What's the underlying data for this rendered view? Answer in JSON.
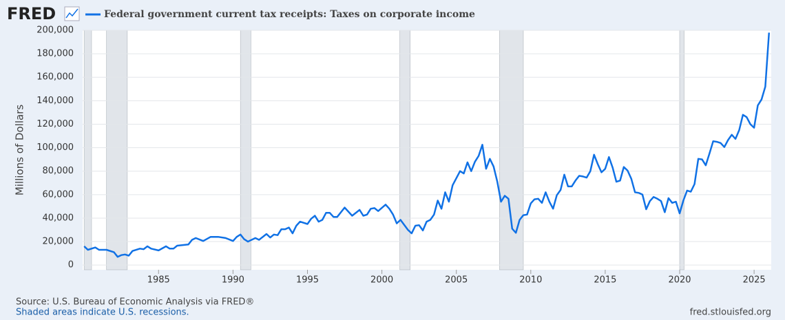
{
  "chart_data": {
    "type": "line",
    "logo": "FRED",
    "title": "Federal government current tax receipts: Taxes on corporate income",
    "y_label": "Millions of Dollars",
    "source": "Source: U.S. Bureau of Economic Analysis via FRED®",
    "note": "Shaded areas indicate U.S. recessions.",
    "site": "fred.stlouisfed.org",
    "color": "#1071e5",
    "grid": true,
    "xlim": [
      1979.9,
      2026.15
    ],
    "xticks": [
      1985,
      1990,
      1995,
      2000,
      2005,
      2010,
      2015,
      2020,
      2025
    ],
    "ylim": [
      -4000,
      200000
    ],
    "yticks": [
      0,
      {
        "value": 20000,
        "label": "20,000"
      },
      {
        "value": 40000,
        "label": "40,000"
      },
      {
        "value": 60000,
        "label": "60,000"
      },
      {
        "value": 80000,
        "label": "80,000"
      },
      {
        "value": 100000,
        "label": "100,000"
      },
      {
        "value": 120000,
        "label": "120,000"
      },
      {
        "value": 140000,
        "label": "140,000"
      },
      {
        "value": 160000,
        "label": "160,000"
      },
      {
        "value": 180000,
        "label": "180,000"
      },
      {
        "value": 200000,
        "label": "200,000"
      }
    ],
    "recessions": [
      [
        1980.0,
        1980.5
      ],
      [
        1981.5,
        1982.9
      ],
      [
        1990.5,
        1991.2
      ],
      [
        2001.2,
        2001.9
      ],
      [
        2007.9,
        2009.5
      ],
      [
        2020.0,
        2020.3
      ]
    ],
    "x": [
      1980.0,
      1980.25,
      1980.75,
      1981.0,
      1981.5,
      1982.0,
      1982.25,
      1982.5,
      1982.75,
      1983.0,
      1983.25,
      1983.75,
      1984.0,
      1984.25,
      1984.5,
      1985.0,
      1985.5,
      1985.75,
      1986.0,
      1986.25,
      1987.0,
      1987.25,
      1987.5,
      1988.0,
      1988.5,
      1989.0,
      1989.5,
      1990.0,
      1990.25,
      1990.5,
      1990.75,
      1991.0,
      1991.5,
      1991.75,
      1992.25,
      1992.5,
      1992.75,
      1993.0,
      1993.25,
      1993.5,
      1993.75,
      1994.0,
      1994.25,
      1994.5,
      1995.0,
      1995.25,
      1995.5,
      1995.75,
      1996.0,
      1996.25,
      1996.5,
      1996.75,
      1997.0,
      1997.5,
      1998.0,
      1998.5,
      1998.75,
      1999.0,
      1999.25,
      1999.5,
      1999.75,
      2000.25,
      2000.5,
      2000.75,
      2001.0,
      2001.25,
      2001.75,
      2002.0,
      2002.25,
      2002.5,
      2002.75,
      2003.0,
      2003.25,
      2003.5,
      2003.75,
      2004.0,
      2004.25,
      2004.5,
      2004.75,
      2005.25,
      2005.5,
      2005.75,
      2006.0,
      2006.25,
      2006.5,
      2006.75,
      2007.0,
      2007.25,
      2007.5,
      2007.75,
      2008.0,
      2008.25,
      2008.5,
      2008.75,
      2009.0,
      2009.25,
      2009.5,
      2009.75,
      2010.0,
      2010.25,
      2010.5,
      2010.75,
      2011.0,
      2011.25,
      2011.5,
      2011.75,
      2012.0,
      2012.25,
      2012.5,
      2012.75,
      2013.0,
      2013.25,
      2013.5,
      2013.75,
      2014.0,
      2014.25,
      2014.5,
      2014.75,
      2015.0,
      2015.25,
      2015.5,
      2015.75,
      2016.0,
      2016.25,
      2016.5,
      2016.75,
      2017.0,
      2017.25,
      2017.5,
      2017.75,
      2018.0,
      2018.25,
      2018.5,
      2018.75,
      2019.0,
      2019.25,
      2019.5,
      2019.75,
      2020.0,
      2020.25,
      2020.5,
      2020.75,
      2021.0,
      2021.25,
      2021.5,
      2021.75,
      2022.0,
      2022.25,
      2022.5,
      2022.75,
      2023.0,
      2023.25,
      2023.5,
      2023.75,
      2024.0,
      2024.25,
      2024.5,
      2024.75,
      2025.0,
      2025.25,
      2025.5,
      2025.75,
      2026.0
    ],
    "values": [
      16000,
      13000,
      15000,
      13000,
      13000,
      11000,
      7000,
      8500,
      9000,
      8000,
      12000,
      14000,
      13500,
      16000,
      14000,
      12500,
      16000,
      14000,
      14000,
      16500,
      17500,
      21500,
      23000,
      20500,
      24000,
      24000,
      23000,
      20500,
      24000,
      26000,
      22000,
      20000,
      23000,
      21500,
      26500,
      23500,
      26000,
      25500,
      30500,
      30500,
      32000,
      27000,
      33500,
      37000,
      35000,
      39500,
      42000,
      37000,
      38500,
      44500,
      44500,
      41000,
      41000,
      49000,
      42000,
      47000,
      42000,
      43000,
      48000,
      48500,
      46000,
      51500,
      48000,
      43000,
      35500,
      38500,
      30000,
      27000,
      33500,
      34000,
      29500,
      37000,
      38500,
      43000,
      55000,
      48000,
      62000,
      54000,
      68000,
      80000,
      78000,
      87500,
      80000,
      88000,
      93000,
      102500,
      82000,
      90500,
      84000,
      71000,
      54000,
      59000,
      56500,
      31000,
      27500,
      38500,
      42500,
      43000,
      52500,
      56000,
      56500,
      53000,
      62000,
      54000,
      48000,
      59500,
      64000,
      77000,
      67000,
      67000,
      72000,
      76000,
      75500,
      74500,
      80000,
      94000,
      86000,
      79000,
      82000,
      92000,
      83000,
      71000,
      72000,
      83500,
      80500,
      73500,
      62000,
      61500,
      60000,
      47500,
      54500,
      58000,
      56500,
      54500,
      45000,
      57000,
      53000,
      54000,
      44000,
      55000,
      63500,
      62500,
      69000,
      90500,
      90000,
      85000,
      95000,
      105500,
      105000,
      104000,
      100500,
      106500,
      111000,
      107500,
      115000,
      128000,
      126000,
      120000,
      117000,
      136000,
      141000,
      152000,
      198000
    ]
  }
}
